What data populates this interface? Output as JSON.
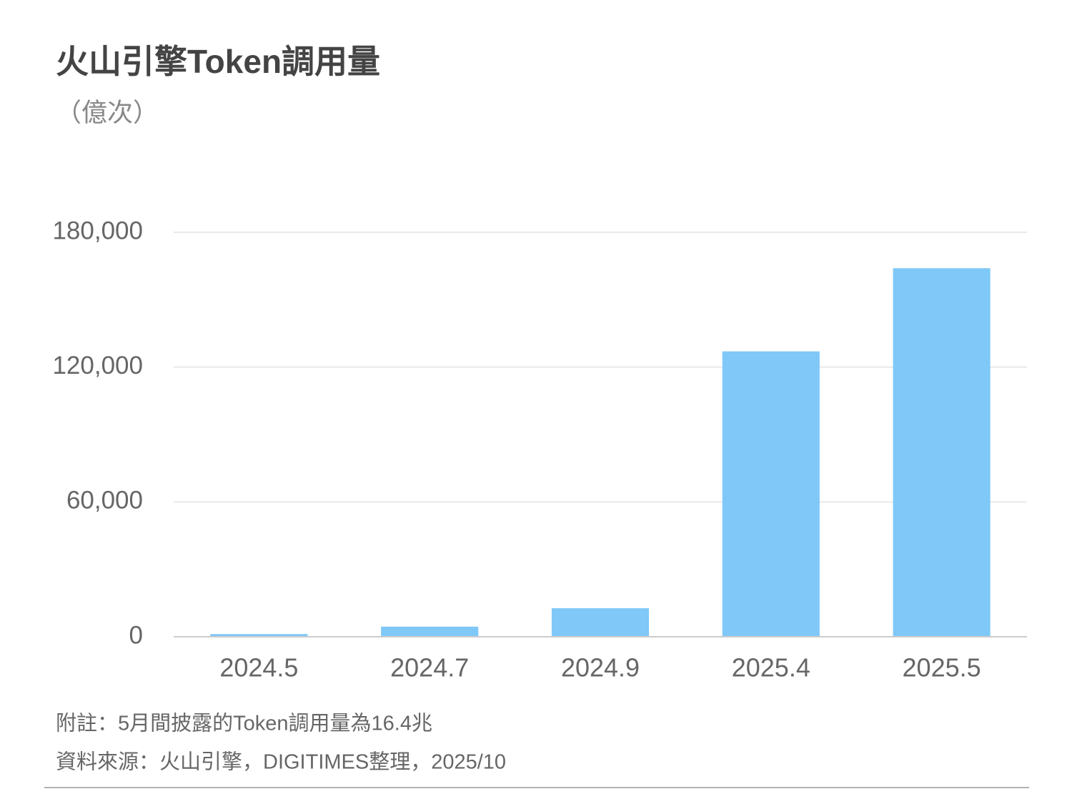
{
  "chart_data": {
    "type": "bar",
    "title": "火山引擎Token調用量",
    "subtitle": "（億次）",
    "categories": [
      "2024.5",
      "2024.7",
      "2024.9",
      "2025.4",
      "2025.5"
    ],
    "values": [
      1200,
      4500,
      12700,
      127000,
      164000
    ],
    "color": "#7fc8f8",
    "ylim": [
      0,
      180000
    ],
    "yticks": [
      0,
      {
        "value": 60000,
        "label": "60,000"
      },
      {
        "value": 120000,
        "label": "120,000"
      },
      {
        "value": 180000,
        "label": "180,000"
      }
    ],
    "grid": true,
    "note": "附註：5月間披露的Token調用量為16.4兆",
    "source": "資料來源：火山引擎，DIGITIMES整理，2025/10"
  }
}
